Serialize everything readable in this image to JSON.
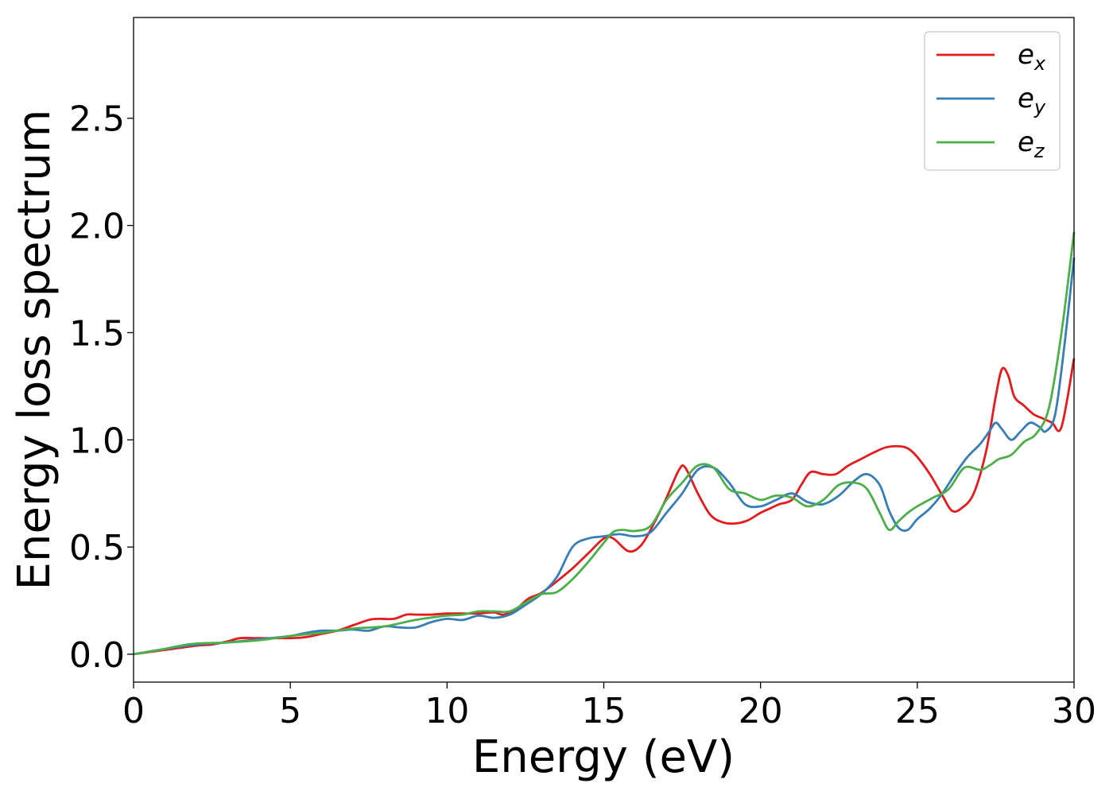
{
  "chart_data": {
    "type": "line",
    "title": "",
    "xlabel": "Energy (eV)",
    "ylabel": "Energy loss spectrum",
    "xlim": [
      0,
      30
    ],
    "ylim": [
      -0.13,
      2.97
    ],
    "xticks": [
      0,
      5,
      10,
      15,
      20,
      25,
      30
    ],
    "xtick_labels": [
      "0",
      "5",
      "10",
      "15",
      "20",
      "25",
      "30"
    ],
    "yticks": [
      0.0,
      0.5,
      1.0,
      1.5,
      2.0,
      2.5
    ],
    "ytick_labels": [
      "0.0",
      "0.5",
      "1.0",
      "1.5",
      "2.0",
      "2.5"
    ],
    "grid": false,
    "legend_position": "top-right",
    "series": [
      {
        "name": "e_x",
        "label_main": "e",
        "label_sub": "x",
        "color": "#e41a1c",
        "x": [
          0,
          1,
          2,
          2.5,
          3,
          3.4,
          4,
          5,
          5.5,
          6,
          6.5,
          7,
          7.5,
          7.8,
          8.3,
          8.7,
          9,
          9.5,
          10,
          10.5,
          11,
          11.5,
          11.8,
          12.2,
          12.6,
          13,
          13.5,
          14,
          14.5,
          15,
          15.3,
          15.8,
          16.2,
          16.6,
          17,
          17.4,
          17.6,
          18,
          18.4,
          18.8,
          19.2,
          19.6,
          20,
          20.3,
          20.6,
          21,
          21.3,
          21.6,
          22,
          22.4,
          22.8,
          23.2,
          23.6,
          24,
          24.4,
          24.7,
          25,
          25.4,
          25.8,
          26.1,
          26.4,
          26.8,
          27.2,
          27.5,
          27.7,
          27.9,
          28.1,
          28.4,
          28.7,
          29,
          29.3,
          29.6,
          30
        ],
        "y": [
          0,
          0.02,
          0.04,
          0.045,
          0.06,
          0.075,
          0.075,
          0.075,
          0.08,
          0.095,
          0.11,
          0.135,
          0.16,
          0.165,
          0.165,
          0.185,
          0.185,
          0.185,
          0.19,
          0.19,
          0.19,
          0.195,
          0.185,
          0.21,
          0.26,
          0.285,
          0.34,
          0.4,
          0.47,
          0.54,
          0.54,
          0.48,
          0.51,
          0.61,
          0.73,
          0.86,
          0.87,
          0.75,
          0.65,
          0.615,
          0.61,
          0.625,
          0.66,
          0.68,
          0.7,
          0.72,
          0.79,
          0.85,
          0.84,
          0.84,
          0.88,
          0.91,
          0.94,
          0.965,
          0.97,
          0.96,
          0.92,
          0.84,
          0.74,
          0.67,
          0.68,
          0.75,
          0.95,
          1.2,
          1.33,
          1.3,
          1.2,
          1.16,
          1.12,
          1.1,
          1.08,
          1.06,
          1.38
        ]
      },
      {
        "name": "e_y",
        "label_main": "e",
        "label_sub": "y",
        "color": "#377eb8",
        "x": [
          0,
          1,
          2,
          3,
          4,
          5,
          5.5,
          6,
          6.5,
          7,
          7.5,
          8,
          8.5,
          9,
          9.5,
          10,
          10.5,
          11,
          11.5,
          12,
          12.5,
          13,
          13.5,
          14,
          14.5,
          15,
          15.5,
          16,
          16.5,
          17,
          17.5,
          18,
          18.5,
          19,
          19.5,
          20,
          20.5,
          21,
          21.5,
          22,
          22.5,
          23,
          23.4,
          23.8,
          24.1,
          24.4,
          24.7,
          25,
          25.4,
          25.8,
          26.2,
          26.6,
          27,
          27.3,
          27.5,
          27.7,
          28,
          28.3,
          28.6,
          28.9,
          29.1,
          29.4,
          29.7,
          30
        ],
        "y": [
          0,
          0.025,
          0.045,
          0.055,
          0.07,
          0.085,
          0.1,
          0.11,
          0.11,
          0.115,
          0.11,
          0.13,
          0.125,
          0.125,
          0.15,
          0.165,
          0.16,
          0.18,
          0.17,
          0.185,
          0.23,
          0.28,
          0.36,
          0.5,
          0.54,
          0.55,
          0.56,
          0.55,
          0.57,
          0.66,
          0.75,
          0.86,
          0.87,
          0.8,
          0.7,
          0.69,
          0.72,
          0.75,
          0.71,
          0.7,
          0.74,
          0.81,
          0.84,
          0.79,
          0.67,
          0.59,
          0.58,
          0.63,
          0.68,
          0.75,
          0.84,
          0.92,
          0.98,
          1.04,
          1.08,
          1.05,
          1.0,
          1.04,
          1.08,
          1.06,
          1.04,
          1.12,
          1.45,
          1.85
        ]
      },
      {
        "name": "e_z",
        "label_main": "e",
        "label_sub": "z",
        "color": "#4daf4a",
        "x": [
          0,
          1,
          1.5,
          2,
          3,
          4,
          5,
          6,
          7,
          8,
          9,
          10,
          10.5,
          11,
          11.5,
          12,
          12.5,
          13,
          13.5,
          14,
          14.5,
          15,
          15.3,
          15.6,
          16,
          16.5,
          17,
          17.5,
          18,
          18.5,
          19,
          19.5,
          20,
          20.5,
          21,
          21.5,
          22,
          22.5,
          23,
          23.4,
          23.8,
          24.1,
          24.4,
          24.7,
          25,
          25.5,
          26,
          26.5,
          27,
          27.3,
          27.6,
          28,
          28.4,
          28.8,
          29.2,
          29.6,
          30
        ],
        "y": [
          0,
          0.025,
          0.04,
          0.05,
          0.055,
          0.065,
          0.085,
          0.1,
          0.12,
          0.13,
          0.16,
          0.18,
          0.185,
          0.2,
          0.2,
          0.2,
          0.24,
          0.28,
          0.29,
          0.35,
          0.43,
          0.52,
          0.57,
          0.58,
          0.575,
          0.6,
          0.72,
          0.8,
          0.88,
          0.87,
          0.77,
          0.75,
          0.72,
          0.74,
          0.73,
          0.69,
          0.72,
          0.79,
          0.8,
          0.77,
          0.66,
          0.58,
          0.62,
          0.66,
          0.69,
          0.73,
          0.77,
          0.87,
          0.86,
          0.88,
          0.91,
          0.93,
          0.99,
          1.03,
          1.15,
          1.5,
          1.97
        ]
      }
    ]
  }
}
